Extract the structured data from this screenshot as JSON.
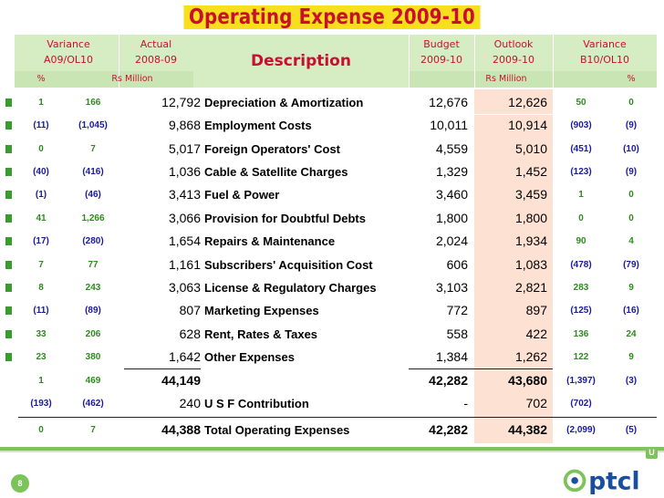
{
  "title": "Operating Expense 2009-10",
  "header": {
    "variance_left_line1": "Variance",
    "variance_left_line2": "A09/OL10",
    "actual_line1": "Actual",
    "actual_line2": "2008-09",
    "description": "Description",
    "budget_line1": "Budget",
    "budget_line2": "2009-10",
    "outlook_line1": "Outlook",
    "outlook_line2": "2009-10",
    "variance_right_line1": "Variance",
    "variance_right_line2": "B10/OL10",
    "pct_left": "%",
    "unit_left": "Rs Million",
    "unit_right": "Rs Million",
    "pct_right": "%"
  },
  "rows": [
    {
      "var_pct": "1",
      "var_amt": "166",
      "actual": "12,792",
      "desc": "Depreciation & Amortization",
      "budget": "12,676",
      "outlook": "12,626",
      "var2_amt": "50",
      "var2_pct": "0"
    },
    {
      "var_pct": "(11)",
      "var_amt": "(1,045)",
      "actual": "9,868",
      "desc": "Employment Costs",
      "budget": "10,011",
      "outlook": "10,914",
      "var2_amt": "(903)",
      "var2_pct": "(9)"
    },
    {
      "var_pct": "0",
      "var_amt": "7",
      "actual": "5,017",
      "desc": "Foreign Operators' Cost",
      "budget": "4,559",
      "outlook": "5,010",
      "var2_amt": "(451)",
      "var2_pct": "(10)"
    },
    {
      "var_pct": "(40)",
      "var_amt": "(416)",
      "actual": "1,036",
      "desc": "Cable & Satellite Charges",
      "budget": "1,329",
      "outlook": "1,452",
      "var2_amt": "(123)",
      "var2_pct": "(9)"
    },
    {
      "var_pct": "(1)",
      "var_amt": "(46)",
      "actual": "3,413",
      "desc": "Fuel & Power",
      "budget": "3,460",
      "outlook": "3,459",
      "var2_amt": "1",
      "var2_pct": "0"
    },
    {
      "var_pct": "41",
      "var_amt": "1,266",
      "actual": "3,066",
      "desc": "Provision for Doubtful Debts",
      "budget": "1,800",
      "outlook": "1,800",
      "var2_amt": "0",
      "var2_pct": "0"
    },
    {
      "var_pct": "(17)",
      "var_amt": "(280)",
      "actual": "1,654",
      "desc": "Repairs & Maintenance",
      "budget": "2,024",
      "outlook": "1,934",
      "var2_amt": "90",
      "var2_pct": "4"
    },
    {
      "var_pct": "7",
      "var_amt": "77",
      "actual": "1,161",
      "desc": "Subscribers' Acquisition Cost",
      "budget": "606",
      "outlook": "1,083",
      "var2_amt": "(478)",
      "var2_pct": "(79)"
    },
    {
      "var_pct": "8",
      "var_amt": "243",
      "actual": "3,063",
      "desc": "License & Regulatory Charges",
      "budget": "3,103",
      "outlook": "2,821",
      "var2_amt": "283",
      "var2_pct": "9"
    },
    {
      "var_pct": "(11)",
      "var_amt": "(89)",
      "actual": "807",
      "desc": "Marketing Expenses",
      "budget": "772",
      "outlook": "897",
      "var2_amt": "(125)",
      "var2_pct": "(16)"
    },
    {
      "var_pct": "33",
      "var_amt": "206",
      "actual": "628",
      "desc": "Rent, Rates & Taxes",
      "budget": "558",
      "outlook": "422",
      "var2_amt": "136",
      "var2_pct": "24"
    },
    {
      "var_pct": "23",
      "var_amt": "380",
      "actual": "1,642",
      "desc": "Other Expenses",
      "budget": "1,384",
      "outlook": "1,262",
      "var2_amt": "122",
      "var2_pct": "9"
    }
  ],
  "subtotal": {
    "var_pct": "1",
    "var_amt": "469",
    "actual": "44,149",
    "budget": "42,282",
    "outlook": "43,680",
    "var2_amt": "(1,397)",
    "var2_pct": "(3)"
  },
  "usf": {
    "var_pct": "(193)",
    "var_amt": "(462)",
    "actual": "240",
    "desc": "U S F Contribution",
    "budget": "-",
    "outlook": "702",
    "var2_amt": "(702)"
  },
  "total": {
    "var_pct": "0",
    "var_amt": "7",
    "actual": "44,388",
    "desc": "Total Operating Expenses",
    "budget": "42,282",
    "outlook": "44,382",
    "var2_amt": "(2,099)",
    "var2_pct": "(5)"
  },
  "footer": {
    "page_number": "8",
    "logo_text": "ptcl",
    "corner_icon": "U"
  },
  "colors": {
    "title_red": "#c8102e",
    "title_highlight": "#f7df1e",
    "header_green": "#d6ecc3",
    "positive_green": "#2e8b1f",
    "negative_blue": "#1a1a9c",
    "outlook_peach": "#fde2d3"
  }
}
